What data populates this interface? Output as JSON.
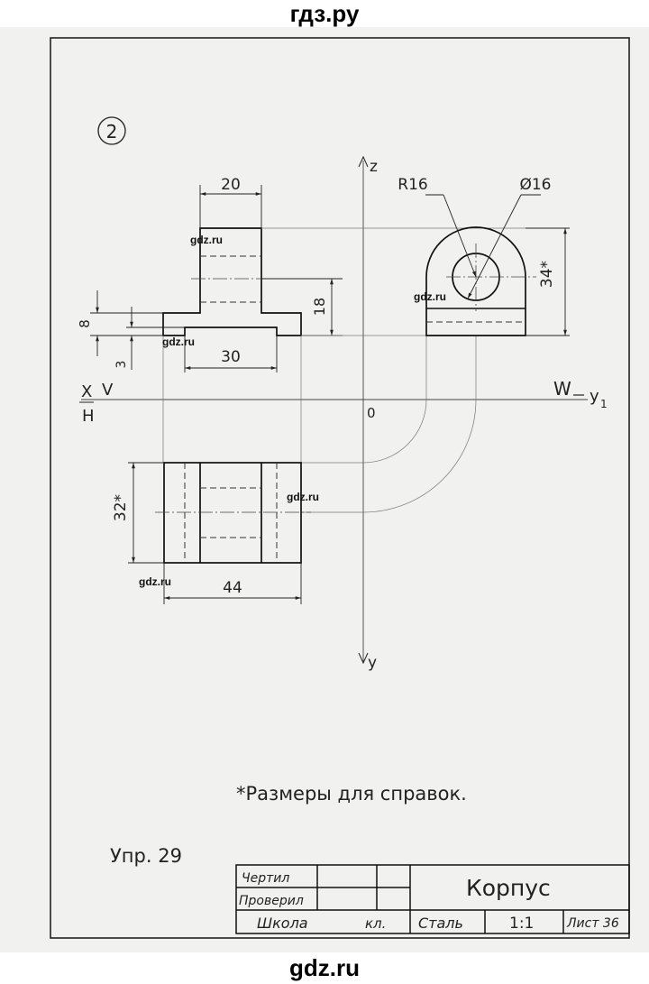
{
  "header": {
    "site_title": "гдз.ру"
  },
  "footer": {
    "site_title": "gdz.ru"
  },
  "sheet": {
    "task_number": "2",
    "axes": {
      "z": "z",
      "y": "y",
      "x": "X",
      "v": "V",
      "h": "H",
      "w": "W",
      "y1": "y",
      "y1_sub": "1",
      "origin": "0"
    },
    "dimensions": {
      "width_20": "20",
      "radius": "R16",
      "diameter": "Ø16",
      "height_8": "8",
      "height_3": "3",
      "width_30": "30",
      "height_18": "18",
      "height_34": "34*",
      "depth_32": "32*",
      "width_44": "44"
    },
    "watermarks": [
      "gdz.ru",
      "gdz.ru",
      "gdz.ru",
      "gdz.ru",
      "gdz.ru"
    ],
    "note": "*Размеры для справок.",
    "exercise": "Упр. 29"
  },
  "title_block": {
    "drawn": "Чертил",
    "checked": "Проверил",
    "school": "Школа",
    "class": "кл.",
    "part_name": "Корпус",
    "material": "Сталь",
    "scale": "1:1",
    "sheet": "Лист 36"
  }
}
